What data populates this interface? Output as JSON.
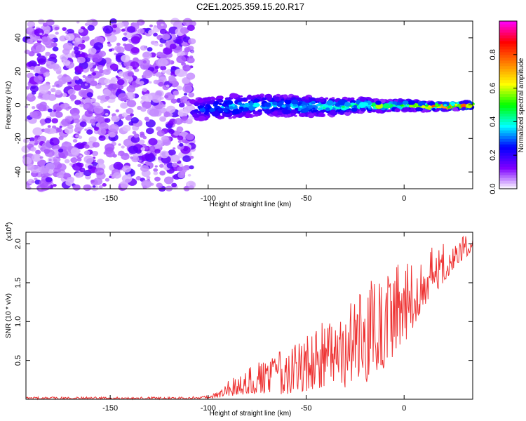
{
  "title": "C2E1.2025.359.15.20.R17",
  "chart_data": [
    {
      "type": "heatmap",
      "title": "C2E1.2025.359.15.20.R17",
      "xlabel": "Height of straight line (km)",
      "ylabel": "Frequency (Hz)",
      "xlim": [
        -193,
        35
      ],
      "ylim": [
        -50,
        50
      ],
      "xticks": [
        -150,
        -100,
        -50,
        0
      ],
      "xtick_labels": [
        "-150",
        "-100",
        "-50",
        "0"
      ],
      "yticks": [
        40,
        20,
        0,
        -20,
        -40
      ],
      "ytick_labels": [
        "40",
        "20",
        "0",
        "-20",
        "-40"
      ],
      "noise_region_x": [
        -193,
        -108
      ],
      "signal_track": {
        "x": [
          -108,
          -90,
          -70,
          -50,
          -35,
          -20,
          -10,
          0,
          10,
          20,
          35
        ],
        "center_hz": [
          -3,
          -1,
          0,
          -1,
          -1,
          0,
          -1,
          0,
          -1,
          -1,
          0
        ],
        "half_width_hz": [
          6,
          7,
          6,
          6,
          5,
          4,
          3,
          3,
          2.5,
          2,
          2
        ],
        "peak_amplitude": [
          0.3,
          0.4,
          0.4,
          0.45,
          0.5,
          0.55,
          0.65,
          0.7,
          0.85,
          0.9,
          0.95
        ]
      },
      "colorbar": {
        "label": "Normalized spectral amplitude",
        "range": [
          0.0,
          1.0
        ],
        "ticks": [
          0.0,
          0.2,
          0.4,
          0.6,
          0.8
        ],
        "tick_labels": [
          "0.0",
          "0.2",
          "0.4",
          "0.6",
          "0.8"
        ],
        "colors": [
          "#ffffff",
          "#7f00ff",
          "#0000ff",
          "#00ffff",
          "#00ff00",
          "#ffff00",
          "#ff8000",
          "#ff0000",
          "#ff00ff"
        ]
      }
    },
    {
      "type": "line",
      "xlabel": "Height of straight line (km)",
      "ylabel": "SNR (10 * v/v)",
      "multiplier_label": "(x10",
      "multiplier_exponent": "4",
      "multiplier_close": ")",
      "xlim": [
        -193,
        35
      ],
      "ylim": [
        0,
        2.15
      ],
      "xticks": [
        -150,
        -100,
        -50,
        0
      ],
      "xtick_labels": [
        "-150",
        "-100",
        "-50",
        "0"
      ],
      "yticks": [
        0.5,
        1.0,
        1.5,
        2.0
      ],
      "ytick_labels": [
        "0.5",
        "1.0",
        "1.5",
        "2.0"
      ],
      "series": [
        {
          "name": "SNR",
          "color": "#ee3333",
          "x_knots": [
            -193,
            -110,
            -100,
            -95,
            -90,
            -80,
            -70,
            -60,
            -50,
            -40,
            -30,
            -20,
            -10,
            0,
            10,
            20,
            30,
            35
          ],
          "envelope_low": [
            0.0,
            0.0,
            0.01,
            0.02,
            0.04,
            0.05,
            0.05,
            0.06,
            0.1,
            0.1,
            0.15,
            0.2,
            0.4,
            0.7,
            1.2,
            1.5,
            1.8,
            1.9
          ],
          "envelope_high": [
            0.03,
            0.03,
            0.05,
            0.1,
            0.25,
            0.45,
            0.55,
            0.65,
            0.8,
            1.05,
            1.15,
            1.5,
            1.6,
            1.8,
            1.95,
            2.0,
            2.1,
            2.1
          ]
        }
      ]
    }
  ]
}
